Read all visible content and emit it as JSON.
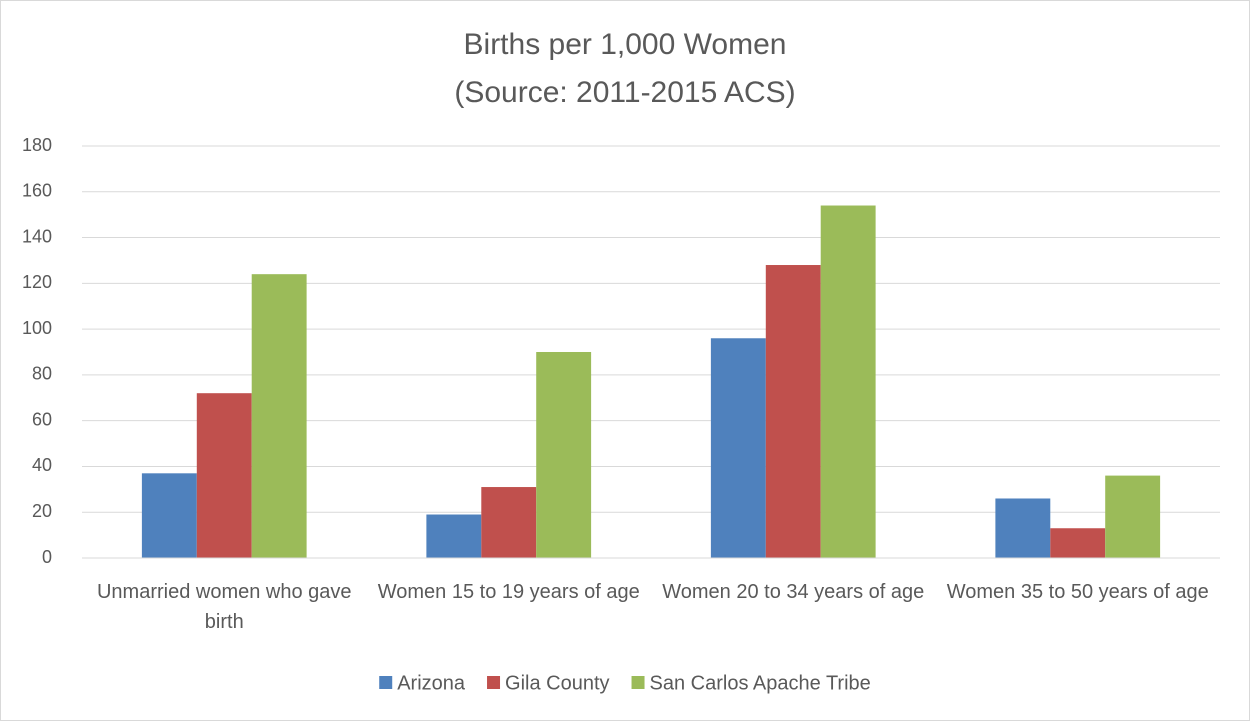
{
  "chart_data": {
    "type": "bar",
    "title": "Births per 1,000 Women",
    "subtitle": "(Source: 2011-2015 ACS)",
    "categories": [
      "Unmarried women who gave birth",
      "Women 15 to 19 years of age",
      "Women 20 to 34 years of age",
      "Women 35 to 50 years of age"
    ],
    "series": [
      {
        "name": "Arizona",
        "color": "#4f81bd",
        "values": [
          37,
          19,
          96,
          26
        ]
      },
      {
        "name": "Gila County",
        "color": "#c0504d",
        "values": [
          72,
          31,
          128,
          13
        ]
      },
      {
        "name": "San Carlos Apache Tribe",
        "color": "#9bbb59",
        "values": [
          124,
          90,
          154,
          36
        ]
      }
    ],
    "ylim": [
      0,
      180
    ],
    "yticks": [
      0,
      20,
      40,
      60,
      80,
      100,
      120,
      140,
      160,
      180
    ],
    "grid": true,
    "legend": "bottom"
  }
}
